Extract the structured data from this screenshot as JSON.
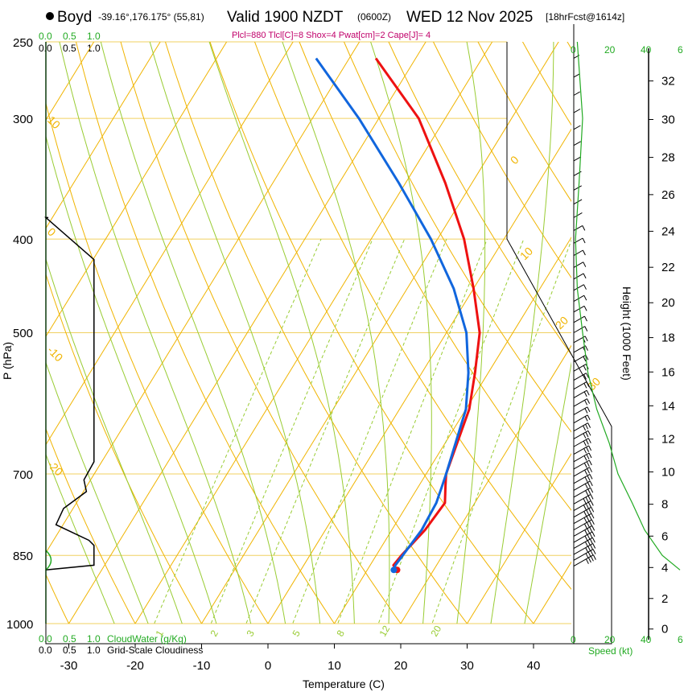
{
  "header": {
    "station": "Boyd",
    "coords": "-39.16°,176.175° (55,81)",
    "valid": "Valid 1900 NZDT",
    "utc": "(0600Z)",
    "date": "WED 12 Nov 2025",
    "forecast": "[18hrFcst@1614z]",
    "subtitle": "Plcl=880 Tlcl[C]=8 Shox=4 Pwat[cm]=2 Cape[J]= 4"
  },
  "legend": {
    "cloudwater_scale_top_green": [
      "0.0",
      "0.5",
      "1.0"
    ],
    "cloudiness_scale_top_black": [
      "0.0",
      "0.5",
      "1.0"
    ],
    "cloudwater_bottom": [
      "0.0",
      "0.5",
      "1.0"
    ],
    "cloudwater_label": "CloudWater (g/Kg)",
    "cloudiness_bottom": [
      "0.0",
      "0.5",
      "1.0"
    ],
    "cloudiness_label": "Grid-Scale Cloudiness",
    "speed_ticks": [
      "0",
      "20",
      "40"
    ],
    "speed_right_extra": "6",
    "speed_label": "Speed (kt)"
  },
  "axes": {
    "xlabel": "Temperature (C)",
    "ylabel": "P (hPa)",
    "height_label": "Height (1000 Feet)",
    "x_ticks": [
      "-30",
      "-20",
      "-10",
      "0",
      "10",
      "20",
      "30",
      "40"
    ],
    "p_ticks": [
      "250",
      "300",
      "400",
      "500",
      "700",
      "850",
      "1000"
    ],
    "height_ticks": [
      "0",
      "2",
      "4",
      "6",
      "8",
      "10",
      "12",
      "14",
      "16",
      "18",
      "20",
      "22",
      "24",
      "26",
      "28",
      "30",
      "32"
    ]
  },
  "chart_data": {
    "type": "line",
    "title": "Boyd skew-T sounding, Valid 1900 NZDT WED 12 Nov 2025",
    "xlabel": "Temperature (C)",
    "ylabel": "P (hPa)",
    "xlim": [
      -35,
      50
    ],
    "ylim": [
      1050,
      250
    ],
    "isotherm_labels": [
      "-10",
      "0",
      "10",
      "20",
      "30"
    ],
    "dry_adiabat_labels": [
      "10",
      "0",
      "-10",
      "-20"
    ],
    "mixing_ratio_labels": [
      "1",
      "2",
      "3",
      "5",
      "8",
      "12",
      "20"
    ],
    "series": [
      {
        "name": "Temperature",
        "color": "#ee1111",
        "points": [
          [
            14.5,
            880
          ],
          [
            13.5,
            870
          ],
          [
            13.8,
            850
          ],
          [
            15,
            800
          ],
          [
            15.5,
            750
          ],
          [
            14,
            720
          ],
          [
            13,
            700
          ],
          [
            10.5,
            600
          ],
          [
            8,
            550
          ],
          [
            5,
            500
          ],
          [
            0,
            450
          ],
          [
            -6,
            400
          ],
          [
            -14,
            350
          ],
          [
            -24,
            300
          ],
          [
            -36,
            260
          ]
        ]
      },
      {
        "name": "Dewpoint",
        "color": "#1166dd",
        "points": [
          [
            14,
            880
          ],
          [
            13.8,
            870
          ],
          [
            14,
            850
          ],
          [
            14.5,
            800
          ],
          [
            14.2,
            750
          ],
          [
            13.5,
            720
          ],
          [
            13,
            700
          ],
          [
            10,
            600
          ],
          [
            7,
            550
          ],
          [
            3,
            500
          ],
          [
            -3,
            450
          ],
          [
            -11,
            400
          ],
          [
            -21,
            350
          ],
          [
            -33,
            300
          ],
          [
            -45,
            260
          ]
        ]
      }
    ],
    "cloudiness_profile": [
      [
        0.05,
        380
      ],
      [
        0.0,
        380
      ],
      [
        0.95,
        420
      ],
      [
        0.95,
        680
      ],
      [
        0.75,
        710
      ],
      [
        0.8,
        730
      ],
      [
        0.35,
        760
      ],
      [
        0.2,
        790
      ],
      [
        0.85,
        820
      ],
      [
        0.95,
        830
      ],
      [
        0.95,
        870
      ],
      [
        0.0,
        880
      ]
    ],
    "wind_speed_profile_kt": [
      [
        2,
        250
      ],
      [
        5,
        300
      ],
      [
        3,
        350
      ],
      [
        1,
        400
      ],
      [
        2,
        450
      ],
      [
        5,
        500
      ],
      [
        8,
        550
      ],
      [
        13,
        600
      ],
      [
        20,
        650
      ],
      [
        25,
        700
      ],
      [
        33,
        750
      ],
      [
        40,
        800
      ],
      [
        50,
        850
      ],
      [
        60,
        880
      ]
    ]
  }
}
